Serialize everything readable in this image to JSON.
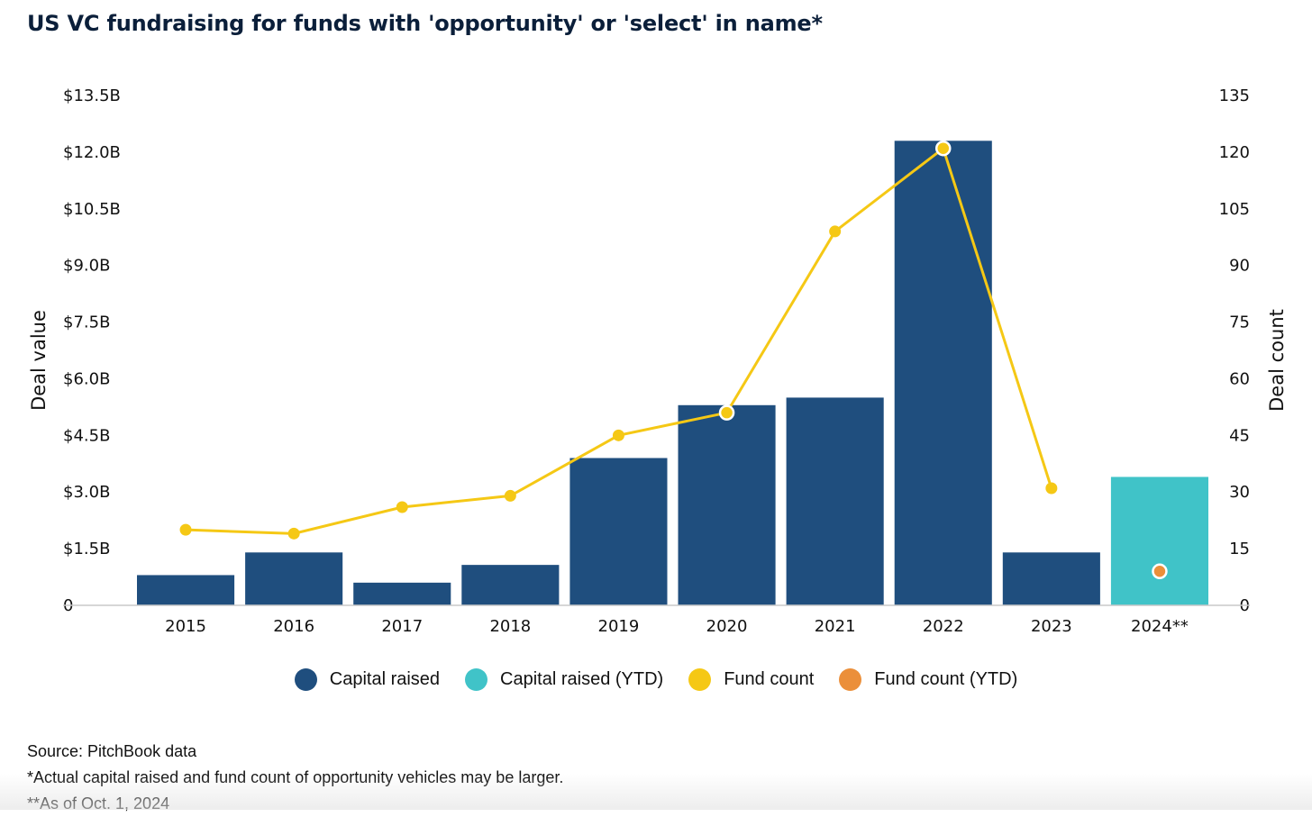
{
  "title": "US VC fundraising for funds with 'opportunity' or 'select' in name*",
  "colors": {
    "capital_raised": "#1f4e7e",
    "capital_raised_ytd": "#40c3c8",
    "fund_count": "#f5c815",
    "fund_count_ytd": "#eb8f3a"
  },
  "chart_data": {
    "type": "bar",
    "categories": [
      "2015",
      "2016",
      "2017",
      "2018",
      "2019",
      "2020",
      "2021",
      "2022",
      "2023",
      "2024**"
    ],
    "y_left": {
      "label": "Deal value",
      "ticks": [
        "0",
        "$1.5B",
        "$3.0B",
        "$4.5B",
        "$6.0B",
        "$7.5B",
        "$9.0B",
        "$10.5B",
        "$12.0B",
        "$13.5B"
      ],
      "min": 0,
      "max": 13.5
    },
    "y_right": {
      "label": "Deal count",
      "ticks": [
        "0",
        "15",
        "30",
        "45",
        "60",
        "75",
        "90",
        "105",
        "120",
        "135"
      ],
      "min": 0,
      "max": 135
    },
    "series": [
      {
        "name": "Capital raised",
        "kind": "bar",
        "axis": "left",
        "values": [
          0.8,
          1.4,
          0.6,
          1.07,
          3.9,
          5.3,
          5.5,
          12.3,
          1.4,
          null
        ]
      },
      {
        "name": "Capital raised (YTD)",
        "kind": "bar",
        "axis": "left",
        "values": [
          null,
          null,
          null,
          null,
          null,
          null,
          null,
          null,
          null,
          3.4
        ]
      },
      {
        "name": "Fund count",
        "kind": "line",
        "axis": "right",
        "values": [
          20,
          19,
          26,
          29,
          45,
          51,
          99,
          121,
          31,
          null
        ]
      },
      {
        "name": "Fund count (YTD)",
        "kind": "point",
        "axis": "right",
        "values": [
          null,
          null,
          null,
          null,
          null,
          null,
          null,
          null,
          null,
          9
        ]
      }
    ],
    "legend": [
      "Capital raised",
      "Capital raised (YTD)",
      "Fund count",
      "Fund count (YTD)"
    ],
    "legend_position": "bottom",
    "grid": false
  },
  "footnotes": {
    "source": "Source: PitchBook data",
    "note1": "*Actual capital raised and fund count of opportunity vehicles may be larger.",
    "note2": "**As of Oct. 1, 2024"
  }
}
